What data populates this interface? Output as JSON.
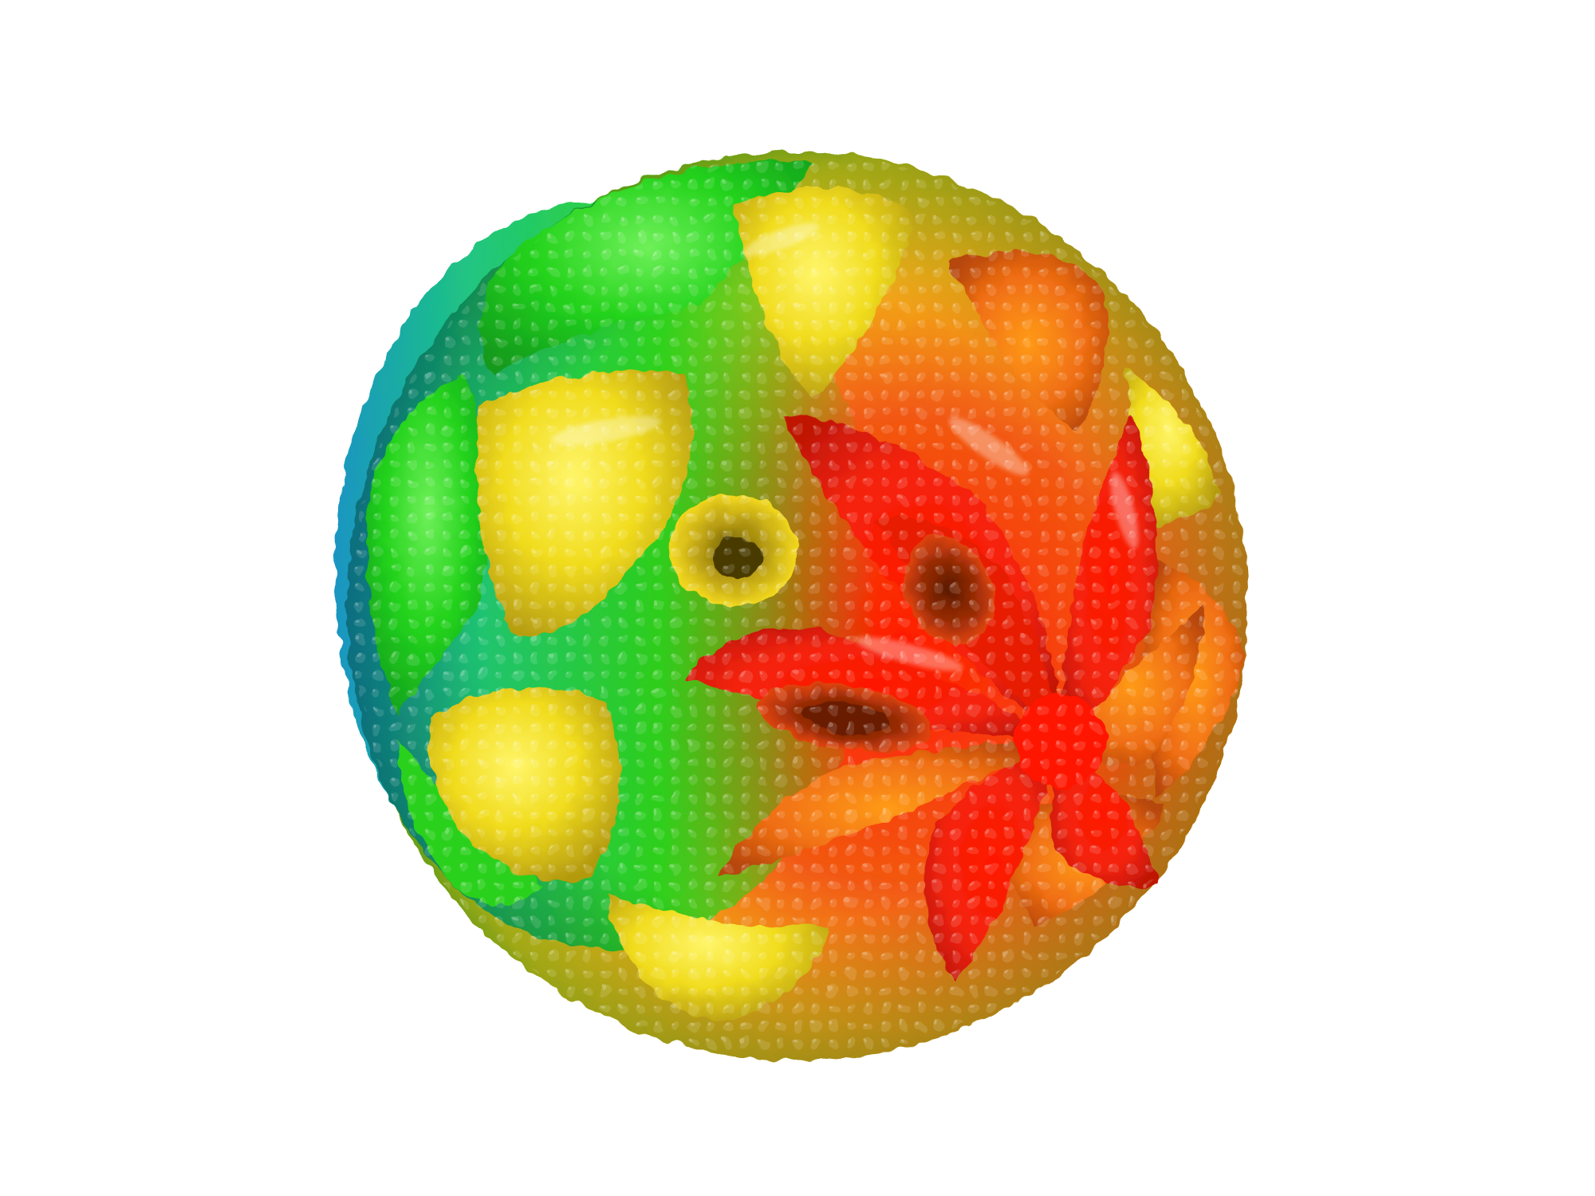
{
  "scene": {
    "background_color": "#ffffff",
    "subject": "molecular-surface-render",
    "color_map": {
      "stops": [
        "#0b7fc4",
        "#10c8a0",
        "#22d11c",
        "#a8e81a",
        "#f4e21a",
        "#f7a516",
        "#f05a10",
        "#ff0a00"
      ],
      "scheme": "rainbow-radial-depth"
    },
    "lobe_count": 8,
    "pore_count": 3
  }
}
